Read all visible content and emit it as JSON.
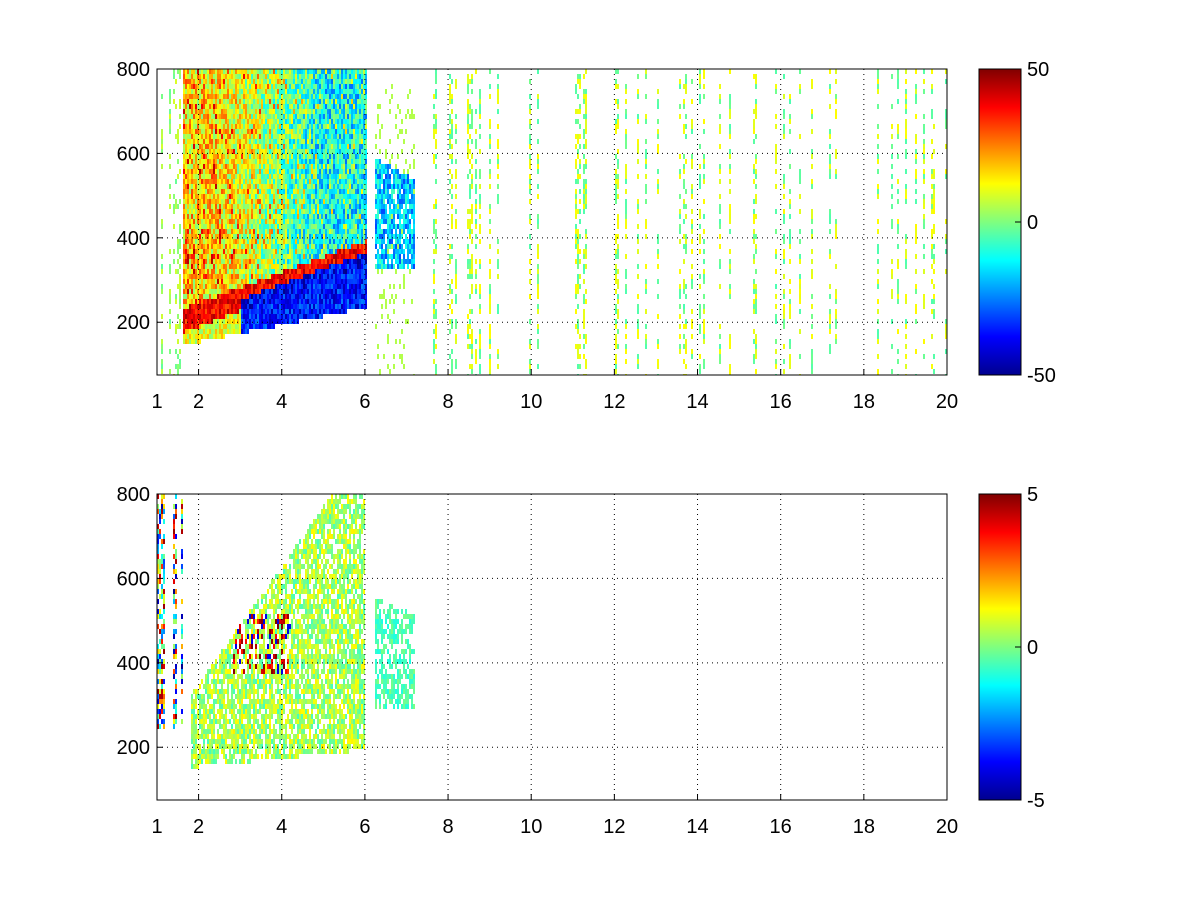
{
  "chart_data": [
    {
      "type": "heatmap",
      "title": "",
      "xlabel": "",
      "ylabel": "",
      "xlim": [
        1,
        20
      ],
      "ylim": [
        75,
        800
      ],
      "xticks": [
        1,
        2,
        4,
        6,
        8,
        10,
        12,
        14,
        16,
        18,
        20
      ],
      "yticks": [
        200,
        400,
        600,
        800
      ],
      "grid": true,
      "colormap": "jet",
      "clim": [
        -50,
        50
      ],
      "colorbar_ticks": [
        50,
        0,
        -50
      ],
      "regions": [
        {
          "name": "ridge",
          "x_range": [
            1.6,
            6.0
          ],
          "y_center_start": 210,
          "y_center_end": 370,
          "value": 42
        },
        {
          "name": "negative-band",
          "x_range": [
            3.0,
            6.0
          ],
          "y_center_start": 250,
          "y_center_end": 320,
          "value": -45
        },
        {
          "name": "upper-cloud",
          "x_range": [
            1.0,
            4.5
          ],
          "y_range": [
            300,
            800
          ],
          "value": 15
        },
        {
          "name": "cyan-cloud",
          "x_range": [
            3.0,
            6.0
          ],
          "y_range": [
            300,
            800
          ],
          "value": -12
        },
        {
          "name": "blob-6-7",
          "x_range": [
            6.2,
            7.2
          ],
          "y_range": [
            300,
            600
          ],
          "value": -18
        },
        {
          "name": "sparse-streaks",
          "x_range": [
            7.5,
            20
          ],
          "y_range": [
            75,
            800
          ],
          "value": 3
        }
      ]
    },
    {
      "type": "heatmap",
      "title": "",
      "xlabel": "",
      "ylabel": "",
      "xlim": [
        1,
        20
      ],
      "ylim": [
        75,
        800
      ],
      "xticks": [
        1,
        2,
        4,
        6,
        8,
        10,
        12,
        14,
        16,
        18,
        20
      ],
      "yticks": [
        200,
        400,
        600,
        800
      ],
      "grid": true,
      "colormap": "jet",
      "clim": [
        -5,
        5
      ],
      "colorbar_ticks": [
        5,
        0,
        -5
      ],
      "regions": [
        {
          "name": "main-body",
          "x_range": [
            1.8,
            6.0
          ],
          "y_range": [
            160,
            800
          ],
          "value": 0.4
        },
        {
          "name": "hot-spot",
          "x_range": [
            2.8,
            4.2
          ],
          "y_range": [
            380,
            520
          ],
          "value": 4.2
        },
        {
          "name": "blob-6-7",
          "x_range": [
            6.2,
            7.2
          ],
          "y_range": [
            300,
            560
          ],
          "value": -0.5
        },
        {
          "name": "left-streaks",
          "x_range": [
            1.0,
            1.6
          ],
          "y_range": [
            250,
            800
          ],
          "value": 0
        }
      ]
    }
  ]
}
